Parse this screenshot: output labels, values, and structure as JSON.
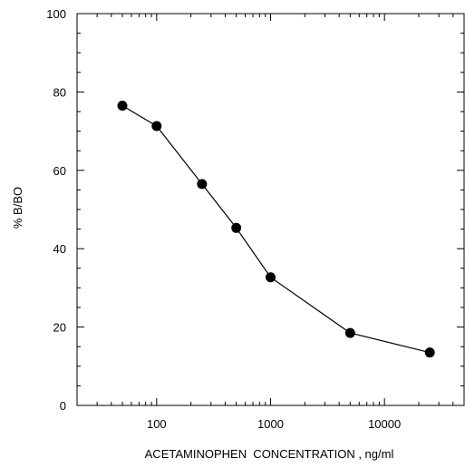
{
  "chart_data": {
    "type": "line",
    "title": "",
    "xlabel": "ACETAMINOPHEN  CONCENTRATION , ng/ml",
    "ylabel": "% B/BO",
    "xscale": "log",
    "xlim": [
      20,
      50000
    ],
    "ylim": [
      0,
      100
    ],
    "grid": false,
    "x_tick_labels": [
      "100",
      "1000",
      "10000"
    ],
    "y_tick_labels": [
      "0",
      "20",
      "40",
      "60",
      "80",
      "100"
    ],
    "series": [
      {
        "x": [
          50,
          100,
          250,
          500,
          1000,
          5000,
          25000
        ],
        "y": [
          76.5,
          71.3,
          56.5,
          45.3,
          32.7,
          18.5,
          13.5
        ],
        "color": "#000000",
        "marker": "filled-circle"
      }
    ]
  }
}
